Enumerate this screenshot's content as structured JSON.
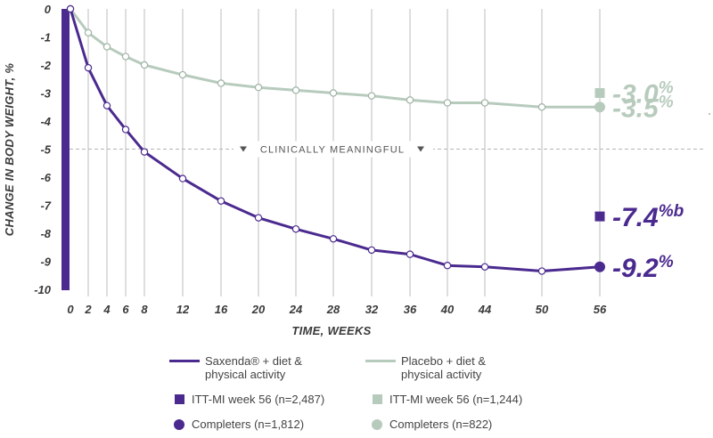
{
  "colors": {
    "saxenda": "#4b2a8f",
    "placebo": "#b7cbbd",
    "text": "#3a3a3a",
    "grid": "#c9c9c9"
  },
  "chart_data": {
    "type": "line",
    "ylabel": "CHANGE IN BODY WEIGHT, %",
    "xlabel": "TIME, WEEKS",
    "ylim": [
      -10,
      0
    ],
    "x_ticks": [
      0,
      2,
      4,
      6,
      8,
      12,
      16,
      20,
      24,
      28,
      32,
      36,
      40,
      44,
      50,
      56
    ],
    "y_ticks": [
      0,
      -1,
      -2,
      -3,
      -4,
      -5,
      -6,
      -7,
      -8,
      -9,
      -10
    ],
    "annotation": "CLINICALLY MEANINGFUL",
    "annotation_y": -5,
    "series": [
      {
        "name": "Saxenda® + diet & physical activity",
        "color": "#4b2a8f",
        "x": [
          0,
          2,
          4,
          6,
          8,
          12,
          16,
          20,
          24,
          28,
          32,
          36,
          40,
          44,
          50
        ],
        "values": [
          0,
          -2.1,
          -3.45,
          -4.3,
          -5.1,
          -6.05,
          -6.85,
          -7.45,
          -7.85,
          -8.2,
          -8.6,
          -8.75,
          -9.15,
          -9.2,
          -9.35
        ]
      },
      {
        "name": "Placebo + diet & physical activity",
        "color": "#b7cbbd",
        "x": [
          0,
          2,
          4,
          6,
          8,
          12,
          16,
          20,
          24,
          28,
          32,
          36,
          40,
          44,
          50,
          56
        ],
        "values": [
          0,
          -0.85,
          -1.35,
          -1.7,
          -2.0,
          -2.35,
          -2.65,
          -2.8,
          -2.9,
          -3.0,
          -3.1,
          -3.25,
          -3.35,
          -3.35,
          -3.5,
          -3.5
        ]
      }
    ],
    "endpoints": [
      {
        "series": "Saxenda",
        "marker": "square",
        "x": 56,
        "value": -7.4,
        "label": "-7.4%",
        "label_sup": "b"
      },
      {
        "series": "Saxenda",
        "marker": "circle",
        "x": 56,
        "value": -9.2,
        "label": "-9.2%"
      },
      {
        "series": "Placebo",
        "marker": "square",
        "x": 56,
        "value": -3.0,
        "label": "-3.0%"
      },
      {
        "series": "Placebo",
        "marker": "circle",
        "x": 56,
        "value": -3.5,
        "label": "-3.5%"
      }
    ]
  },
  "legend": {
    "saxenda_line": "Saxenda® + diet & physical activity",
    "saxenda_line_l1": "Saxenda® + diet &",
    "saxenda_line_l2": "physical activity",
    "placebo_line_l1": "Placebo + diet &",
    "placebo_line_l2": "physical activity",
    "saxenda_itt": "ITT-MI week 56 (n=2,487)",
    "placebo_itt": "ITT-MI week 56 (n=1,244)",
    "saxenda_completers": "Completers (n=1,812)",
    "placebo_completers": "Completers (n=822)"
  }
}
